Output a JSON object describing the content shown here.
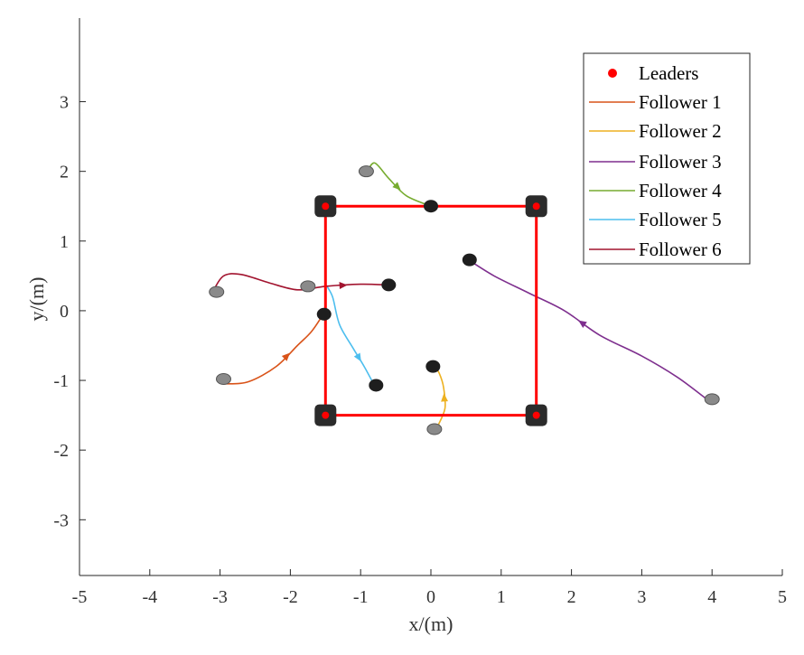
{
  "chart_data": {
    "type": "line",
    "title": "",
    "xlabel": "x/(m)",
    "ylabel": "y/(m)",
    "xlim": [
      -5,
      5
    ],
    "ylim": [
      -3.8,
      4.2
    ],
    "xticks": [
      -5,
      -4,
      -3,
      -2,
      -1,
      0,
      1,
      2,
      3,
      4,
      5
    ],
    "yticks": [
      -3,
      -2,
      -1,
      0,
      1,
      2,
      3
    ],
    "grid": false,
    "legend_position": "top-right",
    "leaders": {
      "name": "Leaders",
      "color": "#ff0000",
      "points": [
        [
          -1.5,
          1.5
        ],
        [
          1.5,
          1.5
        ],
        [
          1.5,
          -1.5
        ],
        [
          -1.5,
          -1.5
        ]
      ]
    },
    "series": [
      {
        "name": "Follower 1",
        "color": "#d95319",
        "x": [
          -2.95,
          -2.6,
          -2.2,
          -1.9,
          -1.7,
          -1.55
        ],
        "y": [
          -1.05,
          -1.02,
          -0.8,
          -0.5,
          -0.3,
          -0.08
        ],
        "arrow_at": 3
      },
      {
        "name": "Follower 2",
        "color": "#edb120",
        "x": [
          0.1,
          0.2,
          0.18,
          0.12,
          0.05
        ],
        "y": [
          -1.65,
          -1.4,
          -1.1,
          -0.9,
          -0.8
        ],
        "arrow_at": 2
      },
      {
        "name": "Follower 3",
        "color": "#7e2f8e",
        "x": [
          3.9,
          3.5,
          3.0,
          2.4,
          1.9,
          1.4,
          0.9,
          0.55
        ],
        "y": [
          -1.25,
          -0.95,
          -0.65,
          -0.35,
          0.0,
          0.25,
          0.5,
          0.72
        ],
        "arrow_at": 4
      },
      {
        "name": "Follower 4",
        "color": "#77ac30",
        "x": [
          -0.9,
          -0.8,
          -0.6,
          -0.35,
          0.0
        ],
        "y": [
          2.0,
          2.12,
          1.9,
          1.65,
          1.5
        ],
        "arrow_at": 3
      },
      {
        "name": "Follower 5",
        "color": "#4dbeee",
        "x": [
          -1.5,
          -1.4,
          -1.3,
          -1.1,
          -0.95,
          -0.8
        ],
        "y": [
          0.38,
          0.2,
          -0.2,
          -0.55,
          -0.8,
          -1.08
        ],
        "arrow_at": 4
      },
      {
        "name": "Follower 6",
        "color": "#a2142f",
        "x": [
          -3.1,
          -2.95,
          -2.7,
          -2.3,
          -1.9,
          -1.5,
          -1.0,
          -0.6
        ],
        "y": [
          0.28,
          0.5,
          0.52,
          0.4,
          0.3,
          0.35,
          0.38,
          0.37
        ],
        "arrow_at": 6
      }
    ],
    "follower_start_markers": [
      [
        -3.05,
        0.27
      ],
      [
        -2.95,
        -0.98
      ],
      [
        0.05,
        -1.7
      ],
      [
        4.0,
        -1.27
      ],
      [
        -0.92,
        2.0
      ],
      [
        -1.75,
        0.35
      ]
    ],
    "follower_end_markers": [
      [
        -1.52,
        -0.05
      ],
      [
        0.03,
        -0.8
      ],
      [
        0.55,
        0.73
      ],
      [
        0.0,
        1.5
      ],
      [
        -0.78,
        -1.07
      ],
      [
        -0.6,
        0.37
      ]
    ]
  }
}
